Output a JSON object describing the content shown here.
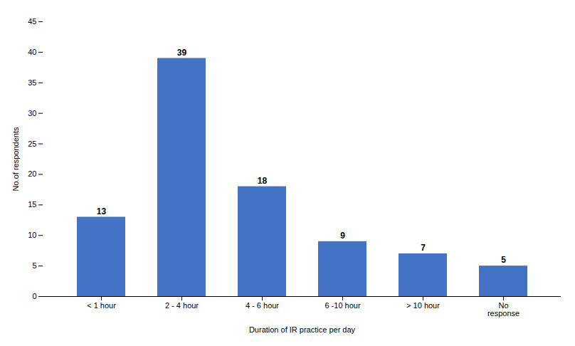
{
  "chart_data": {
    "type": "bar",
    "categories": [
      "< 1 hour",
      "2 - 4 hour",
      "4 - 6 hour",
      "6 -10 hour",
      "> 10 hour",
      "No\nresponse"
    ],
    "values": [
      13,
      39,
      18,
      9,
      7,
      5
    ],
    "color": "#4472C4",
    "xlabel": "Duration of IR practice per day",
    "ylabel": "No.of respondents",
    "ylim": [
      0,
      45
    ],
    "yticks": [
      0,
      5,
      10,
      15,
      20,
      25,
      30,
      35,
      40,
      45
    ],
    "grid": false,
    "data_labels": true
  }
}
